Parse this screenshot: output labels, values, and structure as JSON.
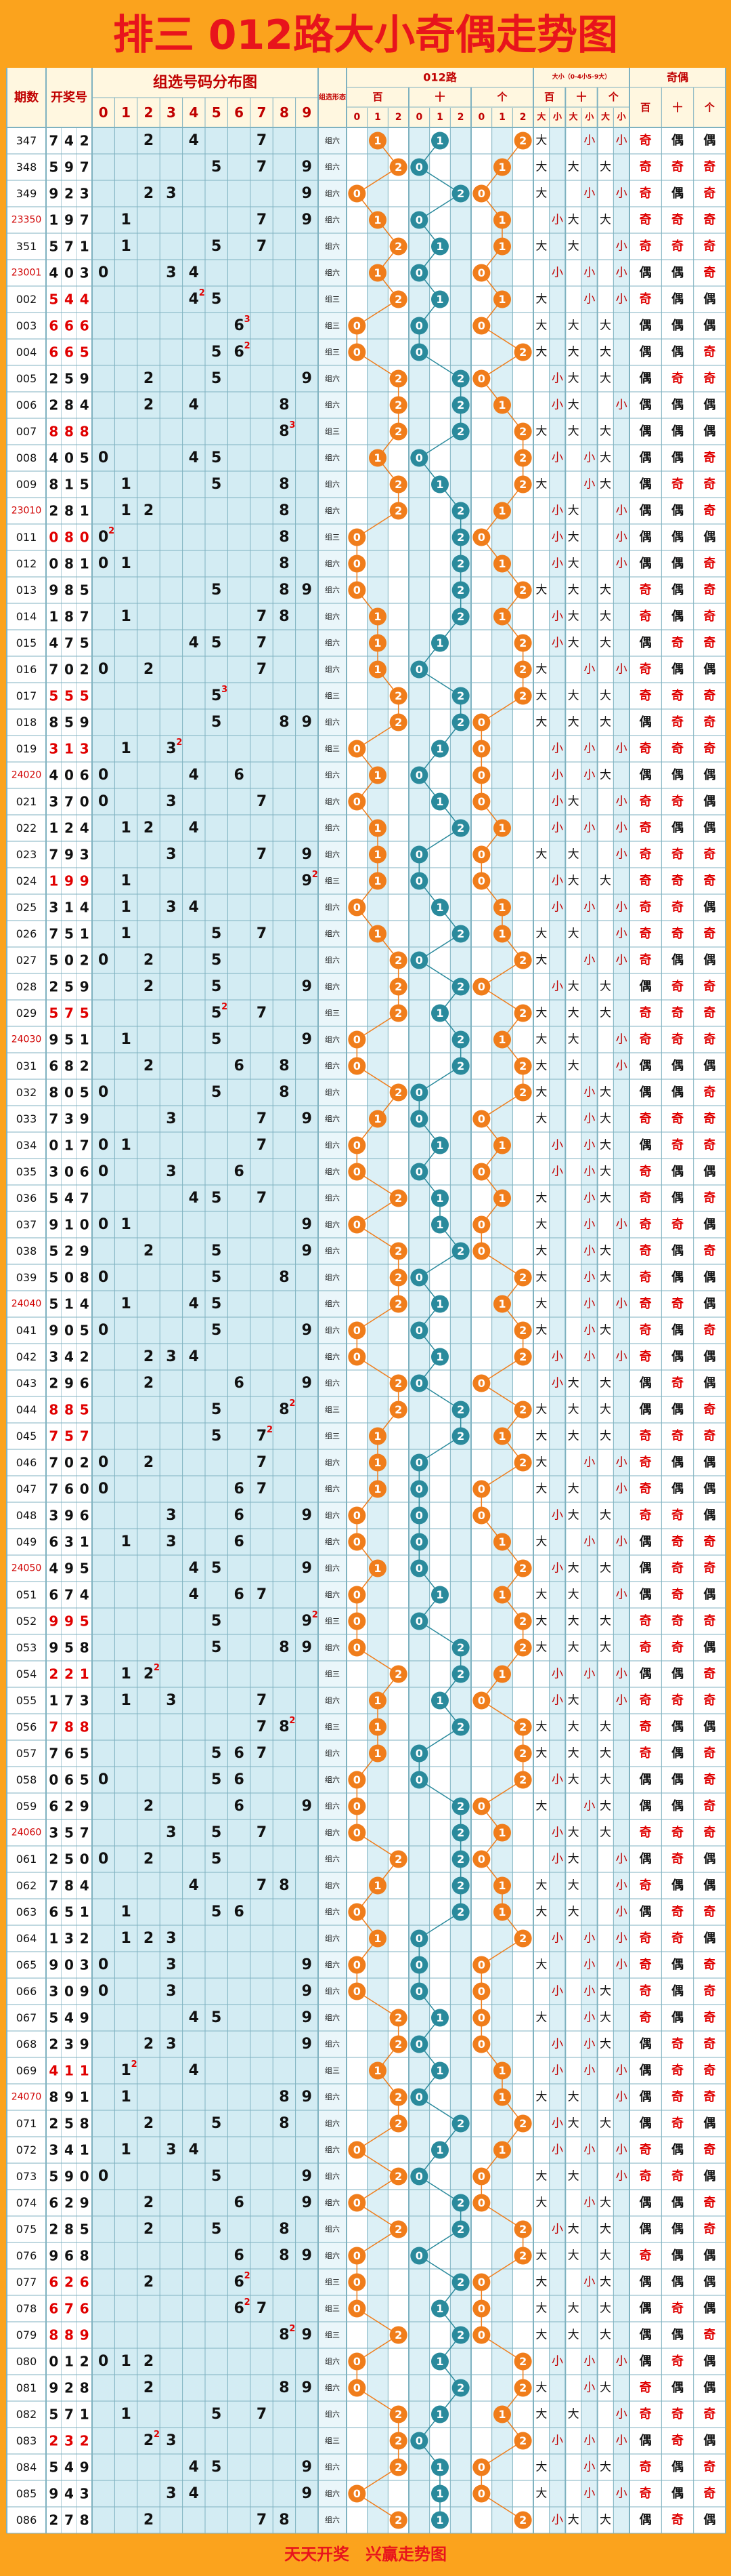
{
  "title": "排三 012路大小奇偶走势图",
  "header": {
    "issue": "期数",
    "draw": "开奖号",
    "dist": "组选号码分布图",
    "digits": [
      "0",
      "1",
      "2",
      "3",
      "4",
      "5",
      "6",
      "7",
      "8",
      "9"
    ],
    "form": "组选形态",
    "route": "012路",
    "positions": [
      "百",
      "十",
      "个"
    ],
    "route_digits": [
      "0",
      "1",
      "2"
    ],
    "size": "大小（0-4小5-9大）",
    "size_labels": [
      "大",
      "小"
    ],
    "parity": "奇偶"
  },
  "rows": [
    {
      "issue": "347",
      "draw": "742",
      "form": "组六",
      "route": "112",
      "size": "大小小",
      "parity": "奇偶偶"
    },
    {
      "issue": "348",
      "draw": "597",
      "form": "组六",
      "route": "201",
      "size": "大大大",
      "parity": "奇奇奇"
    },
    {
      "issue": "349",
      "draw": "923",
      "form": "组六",
      "route": "020",
      "size": "大小小",
      "parity": "奇偶奇"
    },
    {
      "issue": "23350",
      "draw": "197",
      "form": "组六",
      "route": "101",
      "size": "小大大",
      "parity": "奇奇奇"
    },
    {
      "issue": "351",
      "draw": "571",
      "form": "组六",
      "route": "211",
      "size": "大大小",
      "parity": "奇奇奇"
    },
    {
      "issue": "23001",
      "draw": "403",
      "form": "组六",
      "route": "100",
      "size": "小小小",
      "parity": "偶偶奇"
    },
    {
      "issue": "002",
      "draw": "544",
      "form": "组三",
      "route": "211",
      "size": "大小小",
      "parity": "奇偶偶",
      "repeat": 2
    },
    {
      "issue": "003",
      "draw": "666",
      "form": "组三",
      "route": "000",
      "size": "大大大",
      "parity": "偶偶偶",
      "repeat": 3
    },
    {
      "issue": "004",
      "draw": "665",
      "form": "组三",
      "route": "002",
      "size": "大大大",
      "parity": "偶偶奇",
      "repeat": 2
    },
    {
      "issue": "005",
      "draw": "259",
      "form": "组六",
      "route": "220",
      "size": "小大大",
      "parity": "偶奇奇"
    },
    {
      "issue": "006",
      "draw": "284",
      "form": "组六",
      "route": "221",
      "size": "小大小",
      "parity": "偶偶偶"
    },
    {
      "issue": "007",
      "draw": "888",
      "form": "组三",
      "route": "222",
      "size": "大大大",
      "parity": "偶偶偶",
      "repeat": 3
    },
    {
      "issue": "008",
      "draw": "405",
      "form": "组六",
      "route": "102",
      "size": "小小大",
      "parity": "偶偶奇"
    },
    {
      "issue": "009",
      "draw": "815",
      "form": "组六",
      "route": "212",
      "size": "大小大",
      "parity": "偶奇奇"
    },
    {
      "issue": "23010",
      "draw": "281",
      "form": "组六",
      "route": "221",
      "size": "小大小",
      "parity": "偶偶奇"
    },
    {
      "issue": "011",
      "draw": "080",
      "form": "组三",
      "route": "020",
      "size": "小大小",
      "parity": "偶偶偶",
      "repeat": 2
    },
    {
      "issue": "012",
      "draw": "081",
      "form": "组六",
      "route": "021",
      "size": "小大小",
      "parity": "偶偶奇"
    },
    {
      "issue": "013",
      "draw": "985",
      "form": "组六",
      "route": "022",
      "size": "大大大",
      "parity": "奇偶奇"
    },
    {
      "issue": "014",
      "draw": "187",
      "form": "组六",
      "route": "121",
      "size": "小大大",
      "parity": "奇偶奇"
    },
    {
      "issue": "015",
      "draw": "475",
      "form": "组六",
      "route": "112",
      "size": "小大大",
      "parity": "偶奇奇"
    },
    {
      "issue": "016",
      "draw": "702",
      "form": "组六",
      "route": "102",
      "size": "大小小",
      "parity": "奇偶偶"
    },
    {
      "issue": "017",
      "draw": "555",
      "form": "组三",
      "route": "222",
      "size": "大大大",
      "parity": "奇奇奇",
      "repeat": 3
    },
    {
      "issue": "018",
      "draw": "859",
      "form": "组六",
      "route": "220",
      "size": "大大大",
      "parity": "偶奇奇"
    },
    {
      "issue": "019",
      "draw": "313",
      "form": "组三",
      "route": "010",
      "size": "小小小",
      "parity": "奇奇奇",
      "repeat": 2
    },
    {
      "issue": "24020",
      "draw": "406",
      "form": "组六",
      "route": "100",
      "size": "小小大",
      "parity": "偶偶偶"
    },
    {
      "issue": "021",
      "draw": "370",
      "form": "组六",
      "route": "010",
      "size": "小大小",
      "parity": "奇奇偶"
    },
    {
      "issue": "022",
      "draw": "124",
      "form": "组六",
      "route": "121",
      "size": "小小小",
      "parity": "奇偶偶"
    },
    {
      "issue": "023",
      "draw": "793",
      "form": "组六",
      "route": "100",
      "size": "大大小",
      "parity": "奇奇奇"
    },
    {
      "issue": "024",
      "draw": "199",
      "form": "组三",
      "route": "100",
      "size": "小大大",
      "parity": "奇奇奇",
      "repeat": 2
    },
    {
      "issue": "025",
      "draw": "314",
      "form": "组六",
      "route": "011",
      "size": "小小小",
      "parity": "奇奇偶"
    },
    {
      "issue": "026",
      "draw": "751",
      "form": "组六",
      "route": "121",
      "size": "大大小",
      "parity": "奇奇奇"
    },
    {
      "issue": "027",
      "draw": "502",
      "form": "组六",
      "route": "202",
      "size": "大小小",
      "parity": "奇偶偶"
    },
    {
      "issue": "028",
      "draw": "259",
      "form": "组六",
      "route": "220",
      "size": "小大大",
      "parity": "偶奇奇"
    },
    {
      "issue": "029",
      "draw": "575",
      "form": "组三",
      "route": "212",
      "size": "大大大",
      "parity": "奇奇奇",
      "repeat": 2
    },
    {
      "issue": "24030",
      "draw": "951",
      "form": "组六",
      "route": "021",
      "size": "大大小",
      "parity": "奇奇奇"
    },
    {
      "issue": "031",
      "draw": "682",
      "form": "组六",
      "route": "022",
      "size": "大大小",
      "parity": "偶偶偶"
    },
    {
      "issue": "032",
      "draw": "805",
      "form": "组六",
      "route": "202",
      "size": "大小大",
      "parity": "偶偶奇"
    },
    {
      "issue": "033",
      "draw": "739",
      "form": "组六",
      "route": "100",
      "size": "大小大",
      "parity": "奇奇奇"
    },
    {
      "issue": "034",
      "draw": "017",
      "form": "组六",
      "route": "011",
      "size": "小小大",
      "parity": "偶奇奇"
    },
    {
      "issue": "035",
      "draw": "306",
      "form": "组六",
      "route": "000",
      "size": "小小大",
      "parity": "奇偶偶"
    },
    {
      "issue": "036",
      "draw": "547",
      "form": "组六",
      "route": "211",
      "size": "大小大",
      "parity": "奇偶奇"
    },
    {
      "issue": "037",
      "draw": "910",
      "form": "组六",
      "route": "010",
      "size": "大小小",
      "parity": "奇奇偶"
    },
    {
      "issue": "038",
      "draw": "529",
      "form": "组六",
      "route": "220",
      "size": "大小大",
      "parity": "奇偶奇"
    },
    {
      "issue": "039",
      "draw": "508",
      "form": "组六",
      "route": "202",
      "size": "大小大",
      "parity": "奇偶偶"
    },
    {
      "issue": "24040",
      "draw": "514",
      "form": "组六",
      "route": "211",
      "size": "大小小",
      "parity": "奇奇偶"
    },
    {
      "issue": "041",
      "draw": "905",
      "form": "组六",
      "route": "002",
      "size": "大小大",
      "parity": "奇偶奇"
    },
    {
      "issue": "042",
      "draw": "342",
      "form": "组六",
      "route": "012",
      "size": "小小小",
      "parity": "奇偶偶"
    },
    {
      "issue": "043",
      "draw": "296",
      "form": "组六",
      "route": "200",
      "size": "小大大",
      "parity": "偶奇偶"
    },
    {
      "issue": "044",
      "draw": "885",
      "form": "组三",
      "route": "222",
      "size": "大大大",
      "parity": "偶偶奇",
      "repeat": 2
    },
    {
      "issue": "045",
      "draw": "757",
      "form": "组三",
      "route": "121",
      "size": "大大大",
      "parity": "奇奇奇",
      "repeat": 2
    },
    {
      "issue": "046",
      "draw": "702",
      "form": "组六",
      "route": "102",
      "size": "大小小",
      "parity": "奇偶偶"
    },
    {
      "issue": "047",
      "draw": "760",
      "form": "组六",
      "route": "100",
      "size": "大大小",
      "parity": "奇偶偶"
    },
    {
      "issue": "048",
      "draw": "396",
      "form": "组六",
      "route": "000",
      "size": "小大大",
      "parity": "奇奇偶"
    },
    {
      "issue": "049",
      "draw": "631",
      "form": "组六",
      "route": "001",
      "size": "大小小",
      "parity": "偶奇奇"
    },
    {
      "issue": "24050",
      "draw": "495",
      "form": "组六",
      "route": "102",
      "size": "小大大",
      "parity": "偶奇奇"
    },
    {
      "issue": "051",
      "draw": "674",
      "form": "组六",
      "route": "011",
      "size": "大大小",
      "parity": "偶奇偶"
    },
    {
      "issue": "052",
      "draw": "995",
      "form": "组三",
      "route": "002",
      "size": "大大大",
      "parity": "奇奇奇",
      "repeat": 2
    },
    {
      "issue": "053",
      "draw": "958",
      "form": "组六",
      "route": "022",
      "size": "大大大",
      "parity": "奇奇偶"
    },
    {
      "issue": "054",
      "draw": "221",
      "form": "组三",
      "route": "221",
      "size": "小小小",
      "parity": "偶偶奇",
      "repeat": 2
    },
    {
      "issue": "055",
      "draw": "173",
      "form": "组六",
      "route": "110",
      "size": "小大小",
      "parity": "奇奇奇"
    },
    {
      "issue": "056",
      "draw": "788",
      "form": "组三",
      "route": "122",
      "size": "大大大",
      "parity": "奇偶偶",
      "repeat": 2
    },
    {
      "issue": "057",
      "draw": "765",
      "form": "组六",
      "route": "102",
      "size": "大大大",
      "parity": "奇偶奇"
    },
    {
      "issue": "058",
      "draw": "065",
      "form": "组六",
      "route": "002",
      "size": "小大大",
      "parity": "偶偶奇"
    },
    {
      "issue": "059",
      "draw": "629",
      "form": "组六",
      "route": "020",
      "size": "大小大",
      "parity": "偶偶奇"
    },
    {
      "issue": "24060",
      "draw": "357",
      "form": "组六",
      "route": "021",
      "size": "小大大",
      "parity": "奇奇奇"
    },
    {
      "issue": "061",
      "draw": "250",
      "form": "组六",
      "route": "220",
      "size": "小大小",
      "parity": "偶奇偶"
    },
    {
      "issue": "062",
      "draw": "784",
      "form": "组六",
      "route": "121",
      "size": "大大小",
      "parity": "奇偶偶"
    },
    {
      "issue": "063",
      "draw": "651",
      "form": "组六",
      "route": "021",
      "size": "大大小",
      "parity": "偶奇奇"
    },
    {
      "issue": "064",
      "draw": "132",
      "form": "组六",
      "route": "102",
      "size": "小小小",
      "parity": "奇奇偶"
    },
    {
      "issue": "065",
      "draw": "903",
      "form": "组六",
      "route": "000",
      "size": "大小小",
      "parity": "奇偶奇"
    },
    {
      "issue": "066",
      "draw": "309",
      "form": "组六",
      "route": "000",
      "size": "小小大",
      "parity": "奇偶奇"
    },
    {
      "issue": "067",
      "draw": "549",
      "form": "组六",
      "route": "210",
      "size": "大小大",
      "parity": "奇偶奇"
    },
    {
      "issue": "068",
      "draw": "239",
      "form": "组六",
      "route": "200",
      "size": "小小大",
      "parity": "偶奇奇"
    },
    {
      "issue": "069",
      "draw": "411",
      "form": "组三",
      "route": "111",
      "size": "小小小",
      "parity": "偶奇奇",
      "repeat": 2
    },
    {
      "issue": "24070",
      "draw": "891",
      "form": "组六",
      "route": "201",
      "size": "大大小",
      "parity": "偶奇奇"
    },
    {
      "issue": "071",
      "draw": "258",
      "form": "组六",
      "route": "222",
      "size": "小大大",
      "parity": "偶奇偶"
    },
    {
      "issue": "072",
      "draw": "341",
      "form": "组六",
      "route": "011",
      "size": "小小小",
      "parity": "奇偶奇"
    },
    {
      "issue": "073",
      "draw": "590",
      "form": "组六",
      "route": "200",
      "size": "大大小",
      "parity": "奇奇偶"
    },
    {
      "issue": "074",
      "draw": "629",
      "form": "组六",
      "route": "020",
      "size": "大小大",
      "parity": "偶偶奇"
    },
    {
      "issue": "075",
      "draw": "285",
      "form": "组六",
      "route": "222",
      "size": "小大大",
      "parity": "偶偶奇"
    },
    {
      "issue": "076",
      "draw": "968",
      "form": "组六",
      "route": "002",
      "size": "大大大",
      "parity": "奇偶偶"
    },
    {
      "issue": "077",
      "draw": "626",
      "form": "组三",
      "route": "020",
      "size": "大小大",
      "parity": "偶偶偶",
      "repeat": 2
    },
    {
      "issue": "078",
      "draw": "676",
      "form": "组三",
      "route": "010",
      "size": "大大大",
      "parity": "偶奇偶",
      "repeat": 2
    },
    {
      "issue": "079",
      "draw": "889",
      "form": "组三",
      "route": "220",
      "size": "大大大",
      "parity": "偶偶奇",
      "repeat": 2
    },
    {
      "issue": "080",
      "draw": "012",
      "form": "组六",
      "route": "012",
      "size": "小小小",
      "parity": "偶奇偶"
    },
    {
      "issue": "081",
      "draw": "928",
      "form": "组六",
      "route": "022",
      "size": "大小大",
      "parity": "奇偶偶"
    },
    {
      "issue": "082",
      "draw": "571",
      "form": "组六",
      "route": "211",
      "size": "大大小",
      "parity": "奇奇奇"
    },
    {
      "issue": "083",
      "draw": "232",
      "form": "组三",
      "route": "202",
      "size": "小小小",
      "parity": "偶奇偶",
      "repeat": 2
    },
    {
      "issue": "084",
      "draw": "549",
      "form": "组六",
      "route": "210",
      "size": "大小大",
      "parity": "奇偶奇"
    },
    {
      "issue": "085",
      "draw": "943",
      "form": "组六",
      "route": "010",
      "size": "大小小",
      "parity": "奇偶奇"
    },
    {
      "issue": "086",
      "draw": "278",
      "form": "组六",
      "route": "212",
      "size": "小大大",
      "parity": "偶奇偶"
    }
  ],
  "footer": "天天开奖　兴赢走势图"
}
